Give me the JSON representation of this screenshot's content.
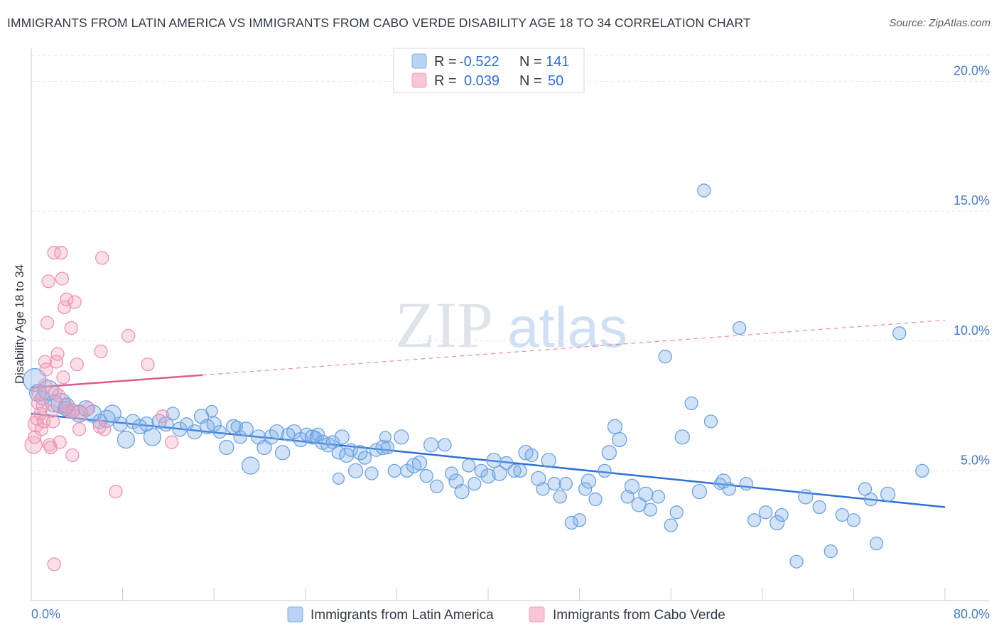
{
  "title": "IMMIGRANTS FROM LATIN AMERICA VS IMMIGRANTS FROM CABO VERDE DISABILITY AGE 18 TO 34 CORRELATION CHART",
  "source": "Source: ZipAtlas.com",
  "watermark": {
    "zip": "ZIP",
    "atlas": "atlas"
  },
  "chart_data": {
    "type": "scatter",
    "ylabel": "Disability Age 18 to 34",
    "xlim": [
      0,
      80
    ],
    "ylim": [
      0,
      21
    ],
    "x_tick_labels": [
      "0.0%",
      "80.0%"
    ],
    "y_ticks": [
      5,
      10,
      15,
      20
    ],
    "y_tick_labels": [
      "5.0%",
      "10.0%",
      "15.0%",
      "20.0%"
    ],
    "legend": [
      {
        "r_label": "R =",
        "r_value": "-0.522",
        "n_label": "N =",
        "n_value": "141"
      },
      {
        "r_label": "R =",
        "r_value": "0.039",
        "n_label": "N =",
        "n_value": "50"
      }
    ],
    "series": [
      {
        "name": "Immigrants from Latin America",
        "color": "#7fb0e8",
        "line_color": "#2f6fd6",
        "trend": {
          "x0": 0,
          "y0": 7.2,
          "x1": 80,
          "y1": 3.6
        },
        "points": [
          [
            0.3,
            8.5,
            16
          ],
          [
            0.6,
            8.0,
            12
          ],
          [
            1.0,
            7.8,
            10
          ],
          [
            1.5,
            8.1,
            14
          ],
          [
            2.0,
            7.6,
            12
          ],
          [
            2.6,
            7.6,
            14
          ],
          [
            3.1,
            7.5,
            11
          ],
          [
            3.6,
            7.3,
            10
          ],
          [
            4.2,
            7.2,
            12
          ],
          [
            4.8,
            7.4,
            11
          ],
          [
            5.4,
            7.2,
            12
          ],
          [
            6.0,
            6.9,
            10
          ],
          [
            6.6,
            7.0,
            12
          ],
          [
            7.1,
            7.2,
            12
          ],
          [
            7.8,
            6.8,
            10
          ],
          [
            8.3,
            6.2,
            12
          ],
          [
            8.9,
            6.9,
            10
          ],
          [
            9.5,
            6.7,
            10
          ],
          [
            10.1,
            6.8,
            10
          ],
          [
            10.6,
            6.3,
            12
          ],
          [
            11.2,
            6.9,
            10
          ],
          [
            11.8,
            6.8,
            10
          ],
          [
            12.4,
            7.2,
            9
          ],
          [
            13.0,
            6.6,
            10
          ],
          [
            13.6,
            6.8,
            9
          ],
          [
            14.3,
            6.5,
            10
          ],
          [
            14.9,
            7.1,
            10
          ],
          [
            15.4,
            6.7,
            10
          ],
          [
            16.0,
            6.8,
            10
          ],
          [
            16.5,
            6.5,
            9
          ],
          [
            17.1,
            5.9,
            10
          ],
          [
            17.7,
            6.7,
            10
          ],
          [
            18.3,
            6.3,
            9
          ],
          [
            18.8,
            6.6,
            10
          ],
          [
            19.2,
            5.2,
            12
          ],
          [
            19.9,
            6.3,
            10
          ],
          [
            20.4,
            5.9,
            10
          ],
          [
            21.0,
            6.3,
            10
          ],
          [
            21.5,
            6.5,
            10
          ],
          [
            22.0,
            5.7,
            10
          ],
          [
            22.5,
            6.4,
            9
          ],
          [
            23.0,
            6.5,
            10
          ],
          [
            23.6,
            6.2,
            10
          ],
          [
            24.1,
            6.4,
            9
          ],
          [
            24.6,
            6.3,
            10
          ],
          [
            25.1,
            6.4,
            9
          ],
          [
            25.5,
            6.1,
            10
          ],
          [
            26.0,
            6.0,
            10
          ],
          [
            26.4,
            6.1,
            9
          ],
          [
            26.9,
            5.7,
            9
          ],
          [
            27.2,
            6.3,
            10
          ],
          [
            27.6,
            5.6,
            10
          ],
          [
            28.0,
            5.8,
            9
          ],
          [
            28.4,
            5.0,
            10
          ],
          [
            28.8,
            5.7,
            10
          ],
          [
            29.2,
            5.5,
            9
          ],
          [
            29.8,
            4.9,
            9
          ],
          [
            30.2,
            5.8,
            9
          ],
          [
            30.8,
            5.9,
            10
          ],
          [
            31.2,
            5.9,
            9
          ],
          [
            31.8,
            5.0,
            9
          ],
          [
            32.4,
            6.3,
            10
          ],
          [
            32.9,
            5.0,
            9
          ],
          [
            33.5,
            5.2,
            10
          ],
          [
            34.0,
            5.3,
            10
          ],
          [
            34.6,
            4.8,
            9
          ],
          [
            35.0,
            6.0,
            10
          ],
          [
            35.5,
            4.4,
            9
          ],
          [
            36.2,
            6.0,
            9
          ],
          [
            36.8,
            4.9,
            9
          ],
          [
            37.2,
            4.6,
            10
          ],
          [
            37.7,
            4.2,
            10
          ],
          [
            38.3,
            5.2,
            9
          ],
          [
            38.8,
            4.5,
            9
          ],
          [
            39.4,
            5.0,
            9
          ],
          [
            40.0,
            4.8,
            10
          ],
          [
            40.5,
            5.4,
            10
          ],
          [
            41.0,
            4.9,
            10
          ],
          [
            41.6,
            5.3,
            9
          ],
          [
            42.3,
            5.0,
            9
          ],
          [
            42.8,
            5.0,
            9
          ],
          [
            43.3,
            5.7,
            10
          ],
          [
            43.8,
            5.6,
            9
          ],
          [
            44.4,
            4.7,
            10
          ],
          [
            44.8,
            4.3,
            9
          ],
          [
            45.3,
            5.4,
            10
          ],
          [
            45.8,
            4.5,
            9
          ],
          [
            46.3,
            4.0,
            9
          ],
          [
            46.8,
            4.5,
            9
          ],
          [
            47.3,
            3.0,
            9
          ],
          [
            48.0,
            3.1,
            9
          ],
          [
            48.5,
            4.3,
            9
          ],
          [
            48.8,
            4.6,
            10
          ],
          [
            49.4,
            3.9,
            9
          ],
          [
            50.2,
            5.0,
            9
          ],
          [
            50.6,
            5.7,
            10
          ],
          [
            51.1,
            6.7,
            10
          ],
          [
            51.5,
            6.2,
            10
          ],
          [
            52.2,
            4.0,
            9
          ],
          [
            52.6,
            4.4,
            10
          ],
          [
            53.2,
            3.7,
            10
          ],
          [
            53.8,
            4.1,
            10
          ],
          [
            54.2,
            3.5,
            9
          ],
          [
            54.9,
            4.0,
            9
          ],
          [
            55.5,
            9.4,
            9
          ],
          [
            56.0,
            2.9,
            9
          ],
          [
            56.5,
            3.4,
            9
          ],
          [
            57.0,
            6.3,
            10
          ],
          [
            57.8,
            7.6,
            9
          ],
          [
            58.5,
            4.2,
            10
          ],
          [
            58.9,
            15.8,
            9
          ],
          [
            59.5,
            6.9,
            9
          ],
          [
            60.6,
            4.6,
            10
          ],
          [
            61.1,
            4.3,
            9
          ],
          [
            62.0,
            10.5,
            9
          ],
          [
            62.6,
            4.5,
            9
          ],
          [
            63.3,
            3.1,
            9
          ],
          [
            64.3,
            3.4,
            9
          ],
          [
            65.3,
            3.0,
            10
          ],
          [
            65.7,
            3.3,
            9
          ],
          [
            67.0,
            1.5,
            9
          ],
          [
            67.8,
            4.0,
            10
          ],
          [
            69.0,
            3.6,
            9
          ],
          [
            70.0,
            1.9,
            9
          ],
          [
            71.0,
            3.3,
            9
          ],
          [
            72.0,
            3.1,
            9
          ],
          [
            73.0,
            4.3,
            9
          ],
          [
            73.5,
            3.9,
            9
          ],
          [
            74.0,
            2.2,
            9
          ],
          [
            75.0,
            4.1,
            10
          ],
          [
            76.0,
            10.3,
            9
          ],
          [
            78.0,
            5.0,
            9
          ],
          [
            15.8,
            7.3,
            8
          ],
          [
            18.0,
            6.7,
            8
          ],
          [
            3.0,
            7.4,
            10
          ],
          [
            26.9,
            4.7,
            8
          ],
          [
            31.0,
            6.3,
            8
          ],
          [
            24.9,
            6.3,
            8
          ],
          [
            60.3,
            4.5,
            8
          ]
        ]
      },
      {
        "name": "Immigrants from Cabo Verde",
        "color": "#f2a3bd",
        "line_color": "#e05a88",
        "trend": {
          "x0": 0,
          "y0": 8.2,
          "x1": 80,
          "y1": 10.8
        },
        "solid_until": 15,
        "points": [
          [
            0.2,
            6.0,
            12
          ],
          [
            0.3,
            6.3,
            9
          ],
          [
            0.4,
            6.8,
            11
          ],
          [
            0.5,
            7.0,
            9
          ],
          [
            0.6,
            7.6,
            9
          ],
          [
            0.7,
            8.0,
            10
          ],
          [
            0.8,
            7.2,
            9
          ],
          [
            0.9,
            6.6,
            9
          ],
          [
            1.0,
            7.5,
            9
          ],
          [
            1.1,
            6.9,
            9
          ],
          [
            1.2,
            8.3,
            9
          ],
          [
            1.3,
            8.9,
            9
          ],
          [
            1.4,
            10.7,
            9
          ],
          [
            1.5,
            12.3,
            9
          ],
          [
            1.6,
            6.0,
            9
          ],
          [
            1.7,
            5.9,
            9
          ],
          [
            1.8,
            7.3,
            9
          ],
          [
            1.9,
            6.9,
            9
          ],
          [
            2.0,
            13.4,
            9
          ],
          [
            2.1,
            8.0,
            9
          ],
          [
            2.2,
            9.2,
            9
          ],
          [
            2.3,
            9.5,
            9
          ],
          [
            2.4,
            7.9,
            9
          ],
          [
            2.5,
            6.1,
            9
          ],
          [
            2.6,
            13.4,
            9
          ],
          [
            2.7,
            12.4,
            9
          ],
          [
            2.8,
            8.6,
            9
          ],
          [
            2.9,
            11.3,
            9
          ],
          [
            3.0,
            7.5,
            9
          ],
          [
            3.1,
            11.6,
            9
          ],
          [
            3.3,
            7.3,
            9
          ],
          [
            3.5,
            10.5,
            9
          ],
          [
            3.6,
            5.6,
            9
          ],
          [
            3.8,
            11.5,
            9
          ],
          [
            4.0,
            9.1,
            9
          ],
          [
            4.2,
            6.6,
            9
          ],
          [
            4.4,
            7.2,
            9
          ],
          [
            5.0,
            7.4,
            9
          ],
          [
            6.0,
            6.7,
            9
          ],
          [
            6.2,
            13.2,
            9
          ],
          [
            6.1,
            9.6,
            9
          ],
          [
            6.4,
            6.6,
            9
          ],
          [
            7.4,
            4.2,
            9
          ],
          [
            8.5,
            10.2,
            9
          ],
          [
            10.2,
            9.1,
            9
          ],
          [
            11.5,
            7.1,
            9
          ],
          [
            12.3,
            6.1,
            9
          ],
          [
            2.0,
            1.4,
            9
          ],
          [
            1.2,
            9.2,
            9
          ],
          [
            3.7,
            7.3,
            9
          ]
        ]
      }
    ]
  }
}
